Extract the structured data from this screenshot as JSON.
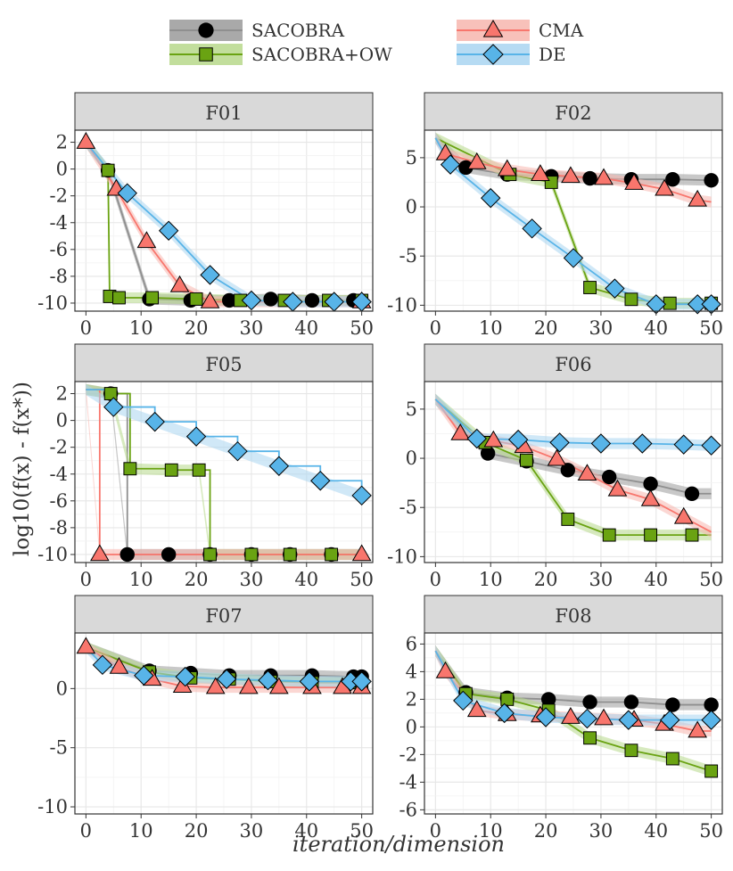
{
  "chart_data": {
    "type": "line",
    "xlabel": "iteration/dimension",
    "ylabel": "log10(f(x) - f(x*))",
    "legend": [
      {
        "name": "SACOBRA",
        "marker": "circle",
        "color": "#000000",
        "line": "#8f8f8f",
        "band": "#9a9a9a"
      },
      {
        "name": "SACOBRA+OW",
        "marker": "square",
        "color": "#6aa312",
        "line": "#6aa312",
        "band": "#b7d88b"
      },
      {
        "name": "CMA",
        "marker": "triangle",
        "color": "#f8766d",
        "line": "#f8766d",
        "band": "#f7b6ae"
      },
      {
        "name": "DE",
        "marker": "diamond",
        "color": "#58b4e8",
        "line": "#58b4e8",
        "band": "#a9d5f1"
      }
    ],
    "panels": [
      {
        "title": "F01",
        "xlim": [
          -2,
          52
        ],
        "ylim": [
          -10.6,
          2.9
        ],
        "xticks": [
          0,
          10,
          20,
          30,
          40,
          50
        ],
        "yticks": [
          2,
          0,
          -2,
          -4,
          -6,
          -8,
          -10
        ],
        "series": {
          "SACOBRA": {
            "x": [
              0,
              4,
              11.5,
              19,
              26,
              33.5,
              41,
              48.5
            ],
            "y": [
              2,
              -0.1,
              -9.7,
              -9.8,
              -9.8,
              -9.7,
              -9.8,
              -9.8
            ]
          },
          "SACOBRA+OW": {
            "x": [
              0,
              4,
              4.3,
              6,
              12,
              20,
              28,
              36,
              44,
              50
            ],
            "y": [
              2,
              -0.1,
              -9.5,
              -9.6,
              -9.6,
              -9.7,
              -9.8,
              -9.8,
              -9.8,
              -9.8
            ]
          },
          "CMA": {
            "x": [
              0,
              5.5,
              11,
              17,
              22.5,
              50
            ],
            "y": [
              2,
              -1.5,
              -5.4,
              -8.7,
              -9.9,
              -9.9
            ]
          },
          "DE": {
            "x": [
              0,
              7.5,
              15,
              22.5,
              30,
              37.5,
              45,
              50
            ],
            "y": [
              2,
              -1.8,
              -4.6,
              -7.9,
              -9.8,
              -9.9,
              -9.9,
              -9.9
            ]
          }
        }
      },
      {
        "title": "F02",
        "xlim": [
          -2,
          52
        ],
        "ylim": [
          -10.6,
          7.8
        ],
        "xticks": [
          0,
          10,
          20,
          30,
          40,
          50
        ],
        "yticks": [
          5,
          0,
          -5,
          -10
        ],
        "series": {
          "SACOBRA": {
            "x": [
              0,
              5.5,
              13,
              21,
              28,
              35.5,
              43,
              50
            ],
            "y": [
              7,
              4,
              3.3,
              3.1,
              2.9,
              2.8,
              2.8,
              2.7
            ]
          },
          "SACOBRA+OW": {
            "x": [
              0,
              13.5,
              21,
              28,
              35.5,
              42.5,
              50
            ],
            "y": [
              7,
              3.3,
              2.5,
              -8.2,
              -9.4,
              -9.8,
              -9.8
            ]
          },
          "CMA": {
            "x": [
              0,
              1.8,
              7.5,
              13,
              19,
              24.5,
              30.5,
              36,
              41.5,
              47.5,
              50
            ],
            "y": [
              7,
              5.4,
              4.5,
              3.8,
              3.3,
              3.1,
              2.9,
              2.4,
              1.8,
              0.7,
              0.5
            ]
          },
          "DE": {
            "x": [
              0,
              2.7,
              10,
              17.5,
              25,
              32.5,
              40,
              47.5,
              50
            ],
            "y": [
              7,
              4.3,
              0.9,
              -2.2,
              -5.2,
              -8.3,
              -9.9,
              -9.9,
              -9.9
            ]
          }
        }
      },
      {
        "title": "F05",
        "xlim": [
          -2,
          52
        ],
        "ylim": [
          -10.6,
          2.9
        ],
        "xticks": [
          0,
          10,
          20,
          30,
          40,
          50
        ],
        "yticks": [
          2,
          0,
          -2,
          -4,
          -6,
          -8,
          -10
        ],
        "series": {
          "SACOBRA": {
            "x": [
              0,
              4.5,
              7.5,
              15,
              22.5,
              30,
              37,
              44.5,
              50
            ],
            "y": [
              2.3,
              2,
              -10,
              -10,
              -10,
              -10,
              -10,
              -10,
              -10
            ]
          },
          "SACOBRA+OW": {
            "x": [
              0,
              4.5,
              8,
              15.5,
              20.5,
              22.5,
              30,
              37,
              44.5,
              50
            ],
            "y": [
              2.3,
              2,
              -3.6,
              -3.7,
              -3.7,
              -10,
              -10,
              -10,
              -10,
              -10
            ]
          },
          "CMA": {
            "x": [
              0,
              2.5,
              50
            ],
            "y": [
              2.3,
              -10,
              -10
            ]
          },
          "DE": {
            "x": [
              0,
              5,
              12.5,
              20,
              27.5,
              35,
              42.5,
              50
            ],
            "y": [
              2.3,
              1,
              -0.1,
              -1.2,
              -2.3,
              -3.4,
              -4.5,
              -5.6
            ]
          }
        }
      },
      {
        "title": "F06",
        "xlim": [
          -2,
          52
        ],
        "ylim": [
          -10.6,
          7.8
        ],
        "xticks": [
          0,
          10,
          20,
          30,
          40,
          50
        ],
        "yticks": [
          5,
          0,
          -5,
          -10
        ],
        "series": {
          "SACOBRA": {
            "x": [
              0,
              9.5,
              16.5,
              24,
              31.5,
              39,
              46.5,
              50
            ],
            "y": [
              6,
              0.5,
              -0.3,
              -1.2,
              -1.9,
              -2.6,
              -3.6,
              -3.6
            ]
          },
          "SACOBRA+OW": {
            "x": [
              0,
              9,
              16.5,
              24,
              31.5,
              39,
              46.5,
              50
            ],
            "y": [
              6,
              1.6,
              -0.2,
              -6.2,
              -7.8,
              -7.8,
              -7.8,
              -7.8
            ]
          },
          "CMA": {
            "x": [
              0,
              4.5,
              10.5,
              16,
              22,
              27.5,
              33,
              39,
              45,
              50
            ],
            "y": [
              6,
              2.5,
              1.8,
              1.2,
              -0.1,
              -1.6,
              -3.2,
              -4.2,
              -6,
              -7.5
            ]
          },
          "DE": {
            "x": [
              0,
              7.5,
              15,
              22.5,
              30,
              37.5,
              45,
              50
            ],
            "y": [
              6,
              2,
              1.9,
              1.6,
              1.5,
              1.5,
              1.4,
              1.3
            ]
          }
        }
      },
      {
        "title": "F07",
        "xlim": [
          -2,
          52
        ],
        "ylim": [
          -10.6,
          4.7
        ],
        "xticks": [
          0,
          10,
          20,
          30,
          40,
          50
        ],
        "yticks": [
          0,
          -5,
          -10
        ],
        "series": {
          "SACOBRA": {
            "x": [
              0,
              11.5,
              19,
              26,
              33.5,
              41,
              48.5,
              50
            ],
            "y": [
              3.5,
              1.5,
              1.3,
              1.1,
              1.1,
              1.1,
              1,
              1
            ]
          },
          "SACOBRA+OW": {
            "x": [
              0,
              11.5,
              19,
              26,
              33.5,
              41,
              48.5,
              50
            ],
            "y": [
              3.5,
              1.4,
              0.9,
              0.8,
              0.6,
              0.5,
              0.5,
              0.5
            ]
          },
          "CMA": {
            "x": [
              0,
              6,
              12,
              17.5,
              23.5,
              29.5,
              35,
              41,
              46.5,
              50
            ],
            "y": [
              3.5,
              1.8,
              0.8,
              0.2,
              0.1,
              0.1,
              0.1,
              0.1,
              0.1,
              0.1
            ]
          },
          "DE": {
            "x": [
              0,
              3,
              10.5,
              18,
              25.5,
              33,
              40.5,
              48,
              50
            ],
            "y": [
              3.5,
              2,
              1.1,
              1,
              0.8,
              0.7,
              0.6,
              0.6,
              0.6
            ]
          }
        }
      },
      {
        "title": "F08",
        "xlim": [
          -2,
          52
        ],
        "ylim": [
          -6.3,
          6.8
        ],
        "xticks": [
          0,
          10,
          20,
          30,
          40,
          50
        ],
        "yticks": [
          6,
          4,
          2,
          0,
          -2,
          -4,
          -6
        ],
        "series": {
          "SACOBRA": {
            "x": [
              0,
              5.5,
              13,
              20.5,
              28,
              35.5,
              43,
              50
            ],
            "y": [
              5.5,
              2.5,
              2.1,
              2,
              1.8,
              1.8,
              1.6,
              1.6
            ]
          },
          "SACOBRA+OW": {
            "x": [
              0,
              5.5,
              13,
              20.5,
              28,
              35.5,
              43,
              50
            ],
            "y": [
              5.5,
              2.4,
              2,
              1.2,
              -0.8,
              -1.7,
              -2.3,
              -3.2
            ]
          },
          "CMA": {
            "x": [
              0,
              1.8,
              7.5,
              13,
              19,
              24.5,
              30.5,
              36,
              41.5,
              47.5,
              50
            ],
            "y": [
              5.5,
              4,
              1.2,
              0.9,
              0.8,
              0.7,
              0.6,
              0.5,
              0.2,
              -0.3,
              -0.3
            ]
          },
          "DE": {
            "x": [
              0,
              5,
              12.5,
              20,
              27.5,
              35,
              42.5,
              50
            ],
            "y": [
              5.5,
              1.9,
              1,
              0.7,
              0.6,
              0.5,
              0.5,
              0.5
            ]
          }
        }
      }
    ]
  }
}
